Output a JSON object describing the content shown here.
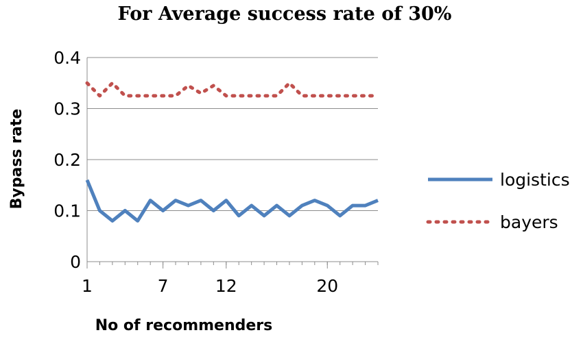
{
  "chart_data": {
    "type": "line",
    "title": "For Average success rate of 30%",
    "xlabel": "No of recommenders",
    "ylabel": "Bypass rate",
    "x": [
      1,
      2,
      3,
      4,
      5,
      6,
      7,
      8,
      9,
      10,
      11,
      12,
      13,
      14,
      15,
      16,
      17,
      18,
      19,
      20,
      21,
      22,
      23,
      24
    ],
    "xticks": [
      1,
      7,
      12,
      20
    ],
    "xlim": [
      1,
      24
    ],
    "ylim": [
      0,
      0.4
    ],
    "yticks": [
      "0",
      "0.1",
      "0.2",
      "0.3",
      "0.4"
    ],
    "grid": true,
    "legend_position": "right",
    "series": [
      {
        "name": "logistics",
        "color": "#4f81bd",
        "style": "solid",
        "values": [
          0.16,
          0.1,
          0.08,
          0.1,
          0.08,
          0.12,
          0.1,
          0.12,
          0.11,
          0.12,
          0.1,
          0.12,
          0.09,
          0.11,
          0.09,
          0.11,
          0.09,
          0.11,
          0.12,
          0.11,
          0.09,
          0.11,
          0.11,
          0.12
        ]
      },
      {
        "name": "bayers",
        "color": "#c0504d",
        "style": "dotted",
        "values": [
          0.35,
          0.325,
          0.35,
          0.325,
          0.325,
          0.325,
          0.325,
          0.325,
          0.345,
          0.33,
          0.345,
          0.325,
          0.325,
          0.325,
          0.325,
          0.325,
          0.35,
          0.325,
          0.325,
          0.325,
          0.325,
          0.325,
          0.325,
          0.325
        ]
      }
    ]
  }
}
